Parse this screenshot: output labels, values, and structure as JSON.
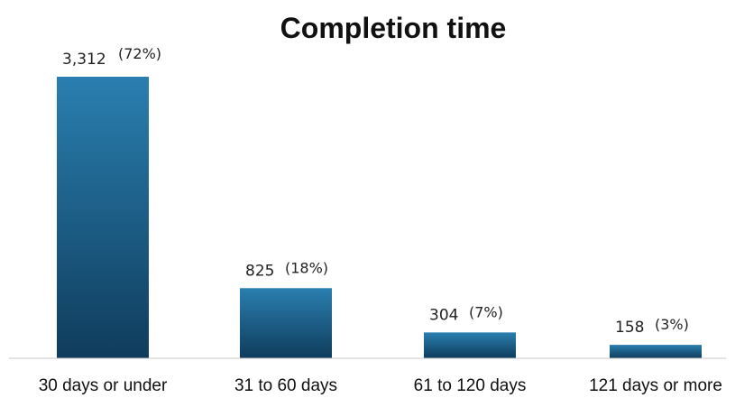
{
  "chart_data": {
    "type": "bar",
    "title": "Completion time",
    "categories": [
      "30 days or under",
      "31 to 60 days",
      "61 to 120 days",
      "121 days or more"
    ],
    "values": [
      3312,
      825,
      304,
      158
    ],
    "value_labels": [
      "3,312",
      "825",
      "304",
      "158"
    ],
    "percent_labels": [
      "(72%)",
      "(18%)",
      "(7%)",
      "(3%)"
    ],
    "ylim": [
      0,
      3312
    ],
    "grid": false,
    "legend": "none",
    "bar_color_top": "#2a7fb0",
    "bar_color_bottom": "#0f3c5c",
    "axis_color": "#c8c8c8"
  }
}
